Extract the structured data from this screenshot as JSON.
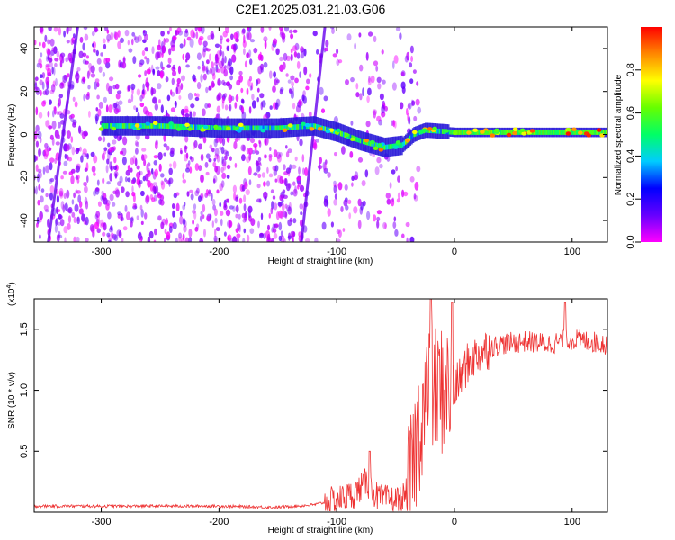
{
  "title": "C2E1.2025.031.21.03.G06",
  "chart_data": [
    {
      "type": "heatmap",
      "xlabel": "Height of straight line (km)",
      "ylabel": "Frequency (Hz)",
      "xlim": [
        -357,
        130
      ],
      "ylim": [
        -50,
        50
      ],
      "xticks": [
        -300,
        -200,
        -100,
        0,
        100
      ],
      "yticks": [
        -40,
        -20,
        0,
        20,
        40
      ],
      "colorbar": {
        "label": "Normalized spectral amplitude",
        "ticks": [
          0.0,
          0.2,
          0.4,
          0.6,
          0.8
        ],
        "range": [
          0,
          1
        ],
        "colors": [
          "#ff00ff",
          "#6600ff",
          "#0000ff",
          "#00ccff",
          "#00ff66",
          "#66ff00",
          "#ffff00",
          "#ff8800",
          "#ff0000"
        ]
      },
      "ridge": {
        "x": [
          -300,
          -250,
          -200,
          -150,
          -120,
          -100,
          -80,
          -60,
          -45,
          -35,
          -25,
          0,
          50,
          130
        ],
        "y": [
          4,
          4,
          3,
          3,
          4,
          1,
          -3,
          -6,
          -5,
          0,
          2,
          1,
          1,
          1
        ]
      },
      "streaks": [
        {
          "x1": -345,
          "y1": -50,
          "x2": -320,
          "y2": 50
        },
        {
          "x1": -130,
          "y1": -50,
          "x2": -110,
          "y2": 50
        }
      ]
    },
    {
      "type": "line",
      "xlabel": "Height of straight line (km)",
      "ylabel": "SNR (10 * v/v)",
      "scale_label": "(x10",
      "scale_exp": "4",
      "xlim": [
        -357,
        130
      ],
      "ylim": [
        0,
        1.75
      ],
      "xticks": [
        -300,
        -200,
        -100,
        0,
        100
      ],
      "yticks": [
        0.5,
        1.0,
        1.5
      ],
      "color": "#ee3333",
      "anchors": {
        "x": [
          -357,
          -300,
          -200,
          -150,
          -120,
          -100,
          -85,
          -75,
          -65,
          -55,
          -45,
          -38,
          -30,
          -25,
          -20,
          -15,
          -10,
          -5,
          0,
          10,
          20,
          30,
          40,
          60,
          80,
          100,
          130
        ],
        "y": [
          0.05,
          0.05,
          0.05,
          0.04,
          0.06,
          0.1,
          0.15,
          0.25,
          0.12,
          0.1,
          0.1,
          0.2,
          0.7,
          0.9,
          1.0,
          1.0,
          1.0,
          1.0,
          1.0,
          1.2,
          1.3,
          1.35,
          1.38,
          1.4,
          1.38,
          1.42,
          1.38
        ]
      },
      "spikes": [
        {
          "x": -72,
          "y": 0.5
        },
        {
          "x": -20,
          "y": 1.75
        },
        {
          "x": -2,
          "y": 1.72
        },
        {
          "x": 94,
          "y": 1.72
        }
      ]
    }
  ]
}
